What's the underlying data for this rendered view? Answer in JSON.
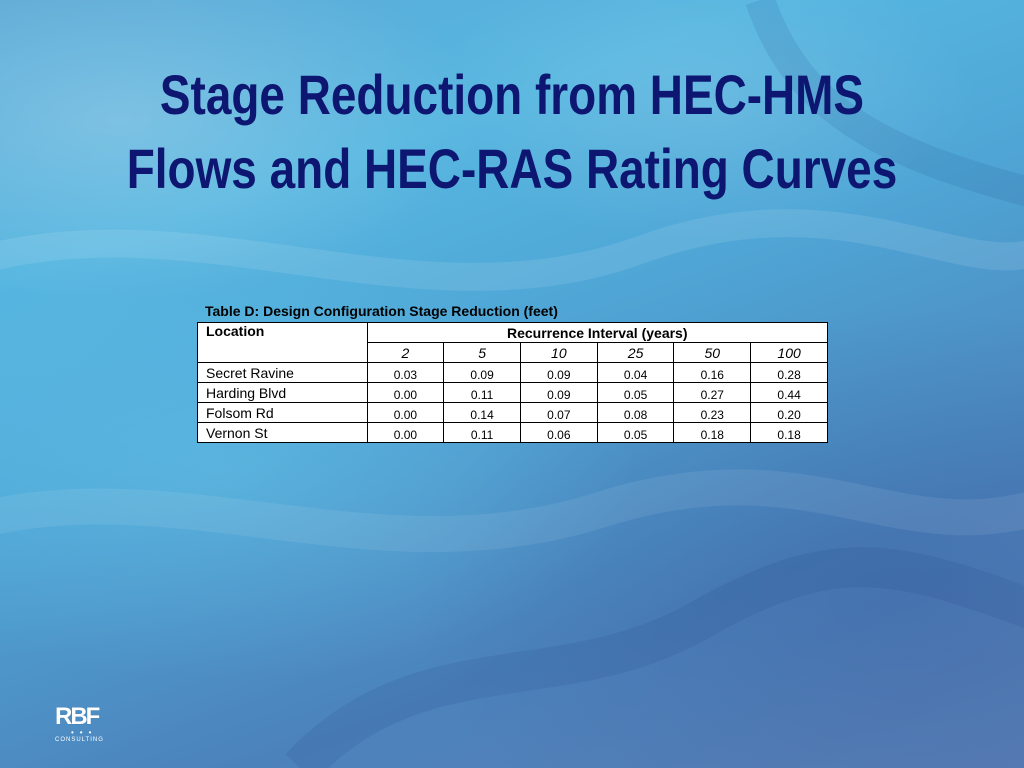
{
  "slide": {
    "title_line1": "Stage Reduction from HEC-HMS",
    "title_line2": "Flows and HEC-RAS Rating Curves"
  },
  "table": {
    "caption": "Table D: Design Configuration Stage Reduction (feet)",
    "location_header": "Location",
    "interval_header": "Recurrence Interval (years)",
    "years": [
      "2",
      "5",
      "10",
      "25",
      "50",
      "100"
    ],
    "rows": [
      {
        "location": "Secret Ravine",
        "values": [
          "0.03",
          "0.09",
          "0.09",
          "0.04",
          "0.16",
          "0.28"
        ]
      },
      {
        "location": "Harding Blvd",
        "values": [
          "0.00",
          "0.11",
          "0.09",
          "0.05",
          "0.27",
          "0.44"
        ]
      },
      {
        "location": "Folsom Rd",
        "values": [
          "0.00",
          "0.14",
          "0.07",
          "0.08",
          "0.23",
          "0.20"
        ]
      },
      {
        "location": "Vernon St",
        "values": [
          "0.00",
          "0.11",
          "0.06",
          "0.05",
          "0.18",
          "0.18"
        ]
      }
    ]
  },
  "logo": {
    "letters": "RBF",
    "subtitle": "CONSULTING"
  },
  "colors": {
    "title": "#0d1670",
    "background_light": "#56b6e0",
    "background_dark": "#5a7fb6"
  }
}
